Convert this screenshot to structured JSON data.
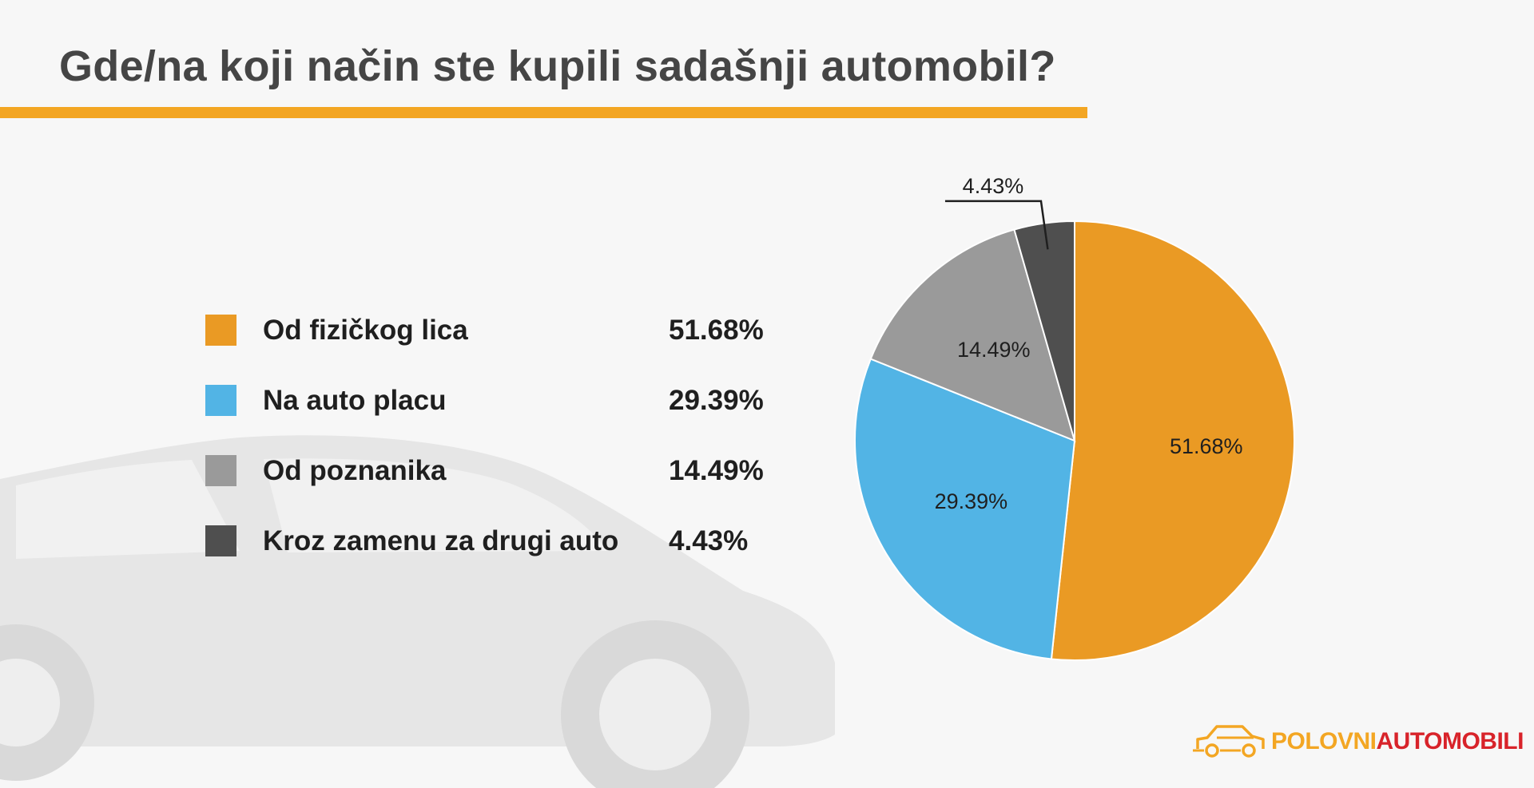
{
  "title": "Gde/na koji način ste kupili sadašnji automobil?",
  "brand": {
    "part1": "POLOVNI",
    "part2": "AUTOMOBILI",
    "color_primary": "#f3a623",
    "color_secondary": "#d8232a",
    "icon": "car-outline-icon"
  },
  "legend": {
    "items": [
      {
        "label": "Od fizičkog lica",
        "value": "51.68%",
        "color": "#ea9a24"
      },
      {
        "label": "Na auto placu",
        "value": "29.39%",
        "color": "#52b4e5"
      },
      {
        "label": "Od poznanika",
        "value": "14.49%",
        "color": "#9a9a9a"
      },
      {
        "label": "Kroz zamenu za drugi auto",
        "value": "4.43%",
        "color": "#4f4f4f"
      }
    ]
  },
  "chart_data": {
    "type": "pie",
    "title": "Gde/na koji način ste kupili sadašnji automobil?",
    "categories": [
      "Od fizičkog lica",
      "Na auto placu",
      "Od poznanika",
      "Kroz zamenu za drugi auto"
    ],
    "values": [
      51.68,
      29.39,
      14.49,
      4.43
    ],
    "labels": [
      "51.68%",
      "29.39%",
      "14.49%",
      "4.43%"
    ],
    "colors": [
      "#ea9a24",
      "#52b4e5",
      "#9a9a9a",
      "#4f4f4f"
    ],
    "start_angle": "12 o'clock",
    "direction": "clockwise",
    "legend_position": "left"
  }
}
